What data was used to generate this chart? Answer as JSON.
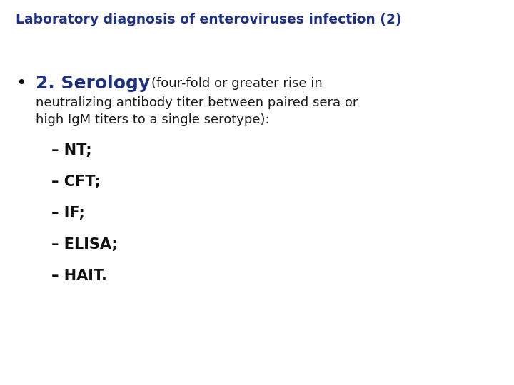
{
  "title": "Laboratory diagnosis of enteroviruses infection (2)",
  "title_color": "#1E3080",
  "title_fontsize": 13.5,
  "background_color": "#FFFFFF",
  "bullet_symbol": "•",
  "serology_label": "2. Serology",
  "serology_color": "#1E3080",
  "serology_fontsize": 18,
  "four_fold_text": "(four-fold or greater rise in",
  "four_fold_fontsize": 13,
  "subtitle_lines": [
    "neutralizing antibody titer between paired sera or",
    "high IgM titers to a single serotype):"
  ],
  "subtitle_fontsize": 13,
  "subtitle_color": "#1a1a1a",
  "subitems": [
    "– NT;",
    "– CFT;",
    "– IF;",
    "– ELISA;",
    "– HAIT."
  ],
  "subitems_color": "#111111",
  "subitems_fontsize": 15
}
